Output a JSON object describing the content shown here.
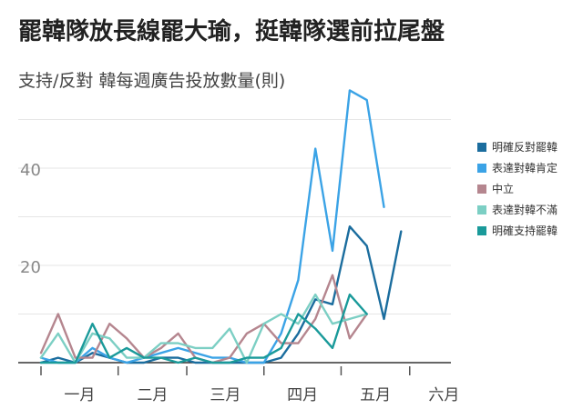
{
  "chart_data": {
    "type": "line",
    "title": "罷韓隊放長線罷大瑜，挺韓隊選前拉尾盤",
    "subtitle": "支持/反對 韓每週廣告投放數量(則)",
    "xlabel": "",
    "ylabel": "",
    "ylim": [
      0,
      55
    ],
    "yticks": [
      20,
      40
    ],
    "ytick_labels": [
      "20",
      "40"
    ],
    "xtick_labels": [
      "一月",
      "二月",
      "三月",
      "四月",
      "五月",
      "六月"
    ],
    "x_range": [
      0,
      23
    ],
    "grid": true,
    "legend_position": "right",
    "series": [
      {
        "name": "明確反對罷韓",
        "color": "#1b6d9e",
        "values": [
          0,
          1,
          0,
          2,
          1,
          0,
          0,
          1,
          1,
          0,
          0,
          0,
          0,
          0,
          1,
          6,
          13,
          12,
          28,
          24,
          9,
          27
        ]
      },
      {
        "name": "表達對韓肯定",
        "color": "#3ba3e6",
        "values": [
          1,
          0,
          0,
          3,
          1,
          0,
          1,
          2,
          3,
          2,
          1,
          1,
          0,
          0,
          6,
          17,
          44,
          23,
          56,
          54,
          32,
          null
        ]
      },
      {
        "name": "中立",
        "color": "#b5868f",
        "values": [
          2,
          10,
          1,
          1,
          8,
          5,
          1,
          3,
          6,
          1,
          0,
          1,
          6,
          8,
          4,
          4,
          9,
          18,
          5,
          10,
          null,
          null
        ]
      },
      {
        "name": "表達對韓不滿",
        "color": "#7ccfc4",
        "values": [
          1,
          6,
          0,
          6,
          5,
          1,
          1,
          4,
          4,
          3,
          3,
          7,
          0,
          8,
          10,
          8,
          14,
          8,
          9,
          10,
          null,
          null
        ]
      },
      {
        "name": "明確支持罷韓",
        "color": "#1a9a9a",
        "values": [
          0,
          0,
          0,
          8,
          1,
          3,
          1,
          1,
          0,
          1,
          0,
          0,
          1,
          1,
          3,
          10,
          7,
          3,
          14,
          10,
          null,
          null
        ]
      }
    ]
  }
}
